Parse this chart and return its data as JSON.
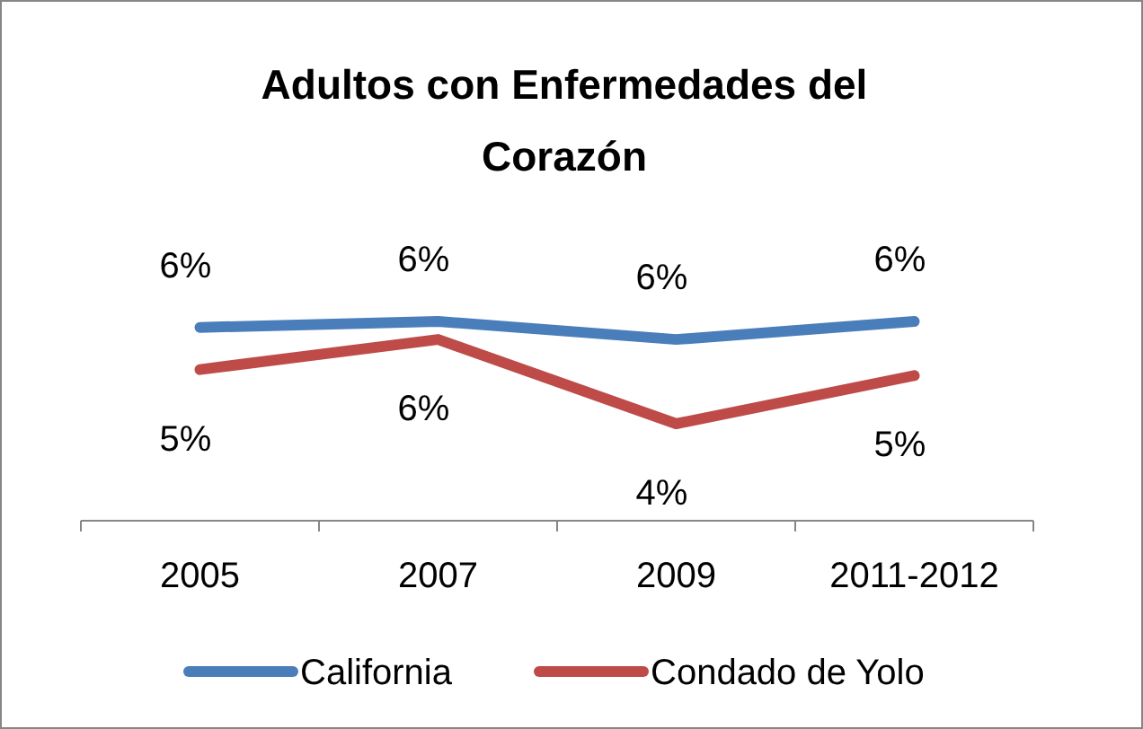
{
  "chart_data": {
    "type": "line",
    "title": "Adultos con Enfermedades del Corazón",
    "categories": [
      "2005",
      "2007",
      "2009",
      "2011-2012"
    ],
    "series": [
      {
        "name": "California",
        "color": "#4a7ebb",
        "values": [
          5.9,
          6.0,
          5.7,
          6.0
        ],
        "value_labels": [
          "6%",
          "6%",
          "6%",
          "6%"
        ]
      },
      {
        "name": "Condado de Yolo",
        "color": "#be4b48",
        "values": [
          5.2,
          5.7,
          4.3,
          5.1
        ],
        "value_labels": [
          "5%",
          "6%",
          "4%",
          "5%"
        ]
      }
    ],
    "legend": "bottom",
    "grid": false,
    "marker": "none",
    "line_style": "solid"
  }
}
